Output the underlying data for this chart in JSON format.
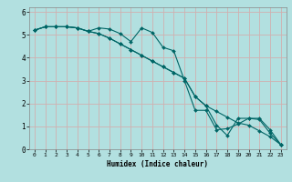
{
  "xlabel": "Humidex (Indice chaleur)",
  "ylabel": "",
  "background_color": "#b2e0e0",
  "grid_color": "#d0b0b0",
  "line_color": "#006666",
  "xlim": [
    -0.5,
    23.5
  ],
  "ylim": [
    0,
    6.2
  ],
  "xticks": [
    0,
    1,
    2,
    3,
    4,
    5,
    6,
    7,
    8,
    9,
    10,
    11,
    12,
    13,
    14,
    15,
    16,
    17,
    18,
    19,
    20,
    21,
    22,
    23
  ],
  "yticks": [
    0,
    1,
    2,
    3,
    4,
    5,
    6
  ],
  "series": [
    {
      "x": [
        0,
        1,
        2,
        3,
        4,
        5,
        6,
        7,
        8,
        9,
        10,
        11,
        12,
        13,
        14,
        15,
        16,
        17,
        18,
        19,
        20,
        21,
        22,
        23
      ],
      "y": [
        5.2,
        5.35,
        5.35,
        5.35,
        5.3,
        5.15,
        5.3,
        5.25,
        5.05,
        4.7,
        5.3,
        5.1,
        4.45,
        4.3,
        3.0,
        1.7,
        1.7,
        0.85,
        0.9,
        1.1,
        1.35,
        1.3,
        0.7,
        0.2
      ]
    },
    {
      "x": [
        0,
        1,
        2,
        3,
        4,
        5,
        6,
        7,
        8,
        9,
        10,
        11,
        12,
        13,
        14,
        15,
        16,
        17,
        18,
        19,
        20,
        21,
        22,
        23
      ],
      "y": [
        5.2,
        5.35,
        5.35,
        5.35,
        5.3,
        5.15,
        5.05,
        4.85,
        4.6,
        4.35,
        4.1,
        3.85,
        3.6,
        3.35,
        3.1,
        2.3,
        1.9,
        1.65,
        1.4,
        1.15,
        1.05,
        0.8,
        0.55,
        0.2
      ]
    },
    {
      "x": [
        0,
        1,
        2,
        3,
        4,
        5,
        6,
        7,
        8,
        9,
        10,
        11,
        12,
        13,
        14,
        15,
        16,
        17,
        18,
        19,
        20,
        21,
        22,
        23
      ],
      "y": [
        5.2,
        5.35,
        5.35,
        5.35,
        5.3,
        5.15,
        5.05,
        4.85,
        4.6,
        4.35,
        4.1,
        3.85,
        3.6,
        3.35,
        3.1,
        2.3,
        1.9,
        1.05,
        0.6,
        1.35,
        1.35,
        1.35,
        0.85,
        0.2
      ]
    }
  ]
}
